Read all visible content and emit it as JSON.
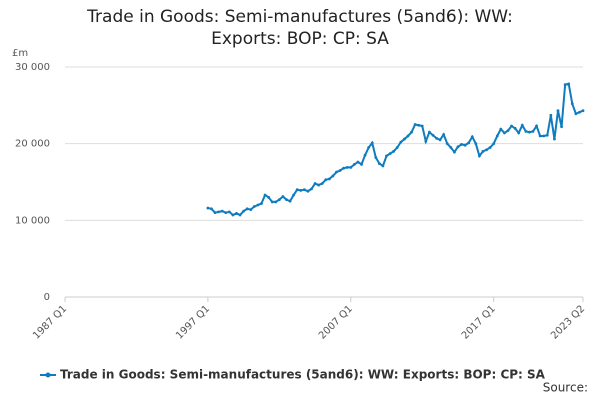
{
  "chart_data": {
    "type": "line",
    "title": "Trade in Goods: Semi-manufactures (5and6): WW: Exports: BOP: CP: SA",
    "y_label": "£m",
    "source": "Source:",
    "categories": [
      "1987 Q1",
      null,
      null,
      null,
      null,
      null,
      null,
      null,
      null,
      null,
      null,
      null,
      null,
      null,
      null,
      null,
      null,
      null,
      null,
      null,
      null,
      null,
      null,
      null,
      null,
      null,
      null,
      null,
      null,
      null,
      null,
      null,
      null,
      null,
      null,
      null,
      null,
      null,
      null,
      null,
      "1997 Q1",
      null,
      null,
      null,
      null,
      null,
      null,
      null,
      null,
      null,
      null,
      null,
      null,
      null,
      null,
      null,
      null,
      null,
      null,
      null,
      null,
      null,
      null,
      null,
      null,
      null,
      null,
      null,
      null,
      null,
      null,
      null,
      null,
      null,
      null,
      null,
      null,
      null,
      null,
      null,
      "2007 Q1",
      null,
      null,
      null,
      null,
      null,
      null,
      null,
      null,
      null,
      null,
      null,
      null,
      null,
      null,
      null,
      null,
      null,
      null,
      null,
      null,
      null,
      null,
      null,
      null,
      null,
      null,
      null,
      null,
      null,
      null,
      null,
      null,
      null,
      null,
      null,
      null,
      null,
      null,
      null,
      "2017 Q1",
      null,
      null,
      null,
      null,
      null,
      null,
      null,
      null,
      null,
      null,
      null,
      null,
      null,
      null,
      null,
      null,
      null,
      null,
      null,
      null,
      null,
      null,
      null,
      null,
      "2023 Q2"
    ],
    "series": [
      {
        "name": "Trade in Goods: Semi-manufactures (5and6): WW: Exports: BOP: CP: SA",
        "color": "#0f7cbf",
        "values": [
          null,
          null,
          null,
          null,
          null,
          null,
          null,
          null,
          null,
          null,
          null,
          null,
          null,
          null,
          null,
          null,
          null,
          null,
          null,
          null,
          null,
          null,
          null,
          null,
          null,
          null,
          null,
          null,
          null,
          null,
          null,
          null,
          null,
          null,
          null,
          null,
          null,
          null,
          null,
          null,
          11600,
          11500,
          11000,
          11100,
          11200,
          11000,
          11100,
          10700,
          10900,
          10700,
          11200,
          11500,
          11400,
          11800,
          12000,
          12200,
          13300,
          13000,
          12400,
          12400,
          12700,
          13100,
          12700,
          12500,
          13300,
          14000,
          13900,
          14000,
          13800,
          14100,
          14800,
          14600,
          14800,
          15300,
          15400,
          15800,
          16300,
          16500,
          16800,
          16900,
          16900,
          17300,
          17600,
          17300,
          18500,
          19500,
          20100,
          18200,
          17400,
          17100,
          18400,
          18700,
          19000,
          19500,
          20200,
          20600,
          21000,
          21500,
          22500,
          22400,
          22300,
          20300,
          21500,
          21100,
          20700,
          20500,
          21200,
          20000,
          19500,
          18900,
          19600,
          19900,
          19800,
          20100,
          20900,
          20000,
          18400,
          19000,
          19200,
          19500,
          20000,
          21000,
          21900,
          21400,
          21700,
          22300,
          22000,
          21400,
          22400,
          21600,
          21500,
          21600,
          22300,
          21000,
          21000,
          21100,
          23700,
          20600,
          24300,
          22200,
          27700,
          27800,
          25200,
          23900,
          24100,
          24300
        ]
      }
    ],
    "ylim": [
      0,
      30000
    ],
    "yticks": [
      0,
      {
        "value": 10000,
        "label": "10 000"
      },
      {
        "value": 20000,
        "label": "20 000"
      },
      {
        "value": 30000,
        "label": "30 000"
      }
    ],
    "grid": true
  }
}
